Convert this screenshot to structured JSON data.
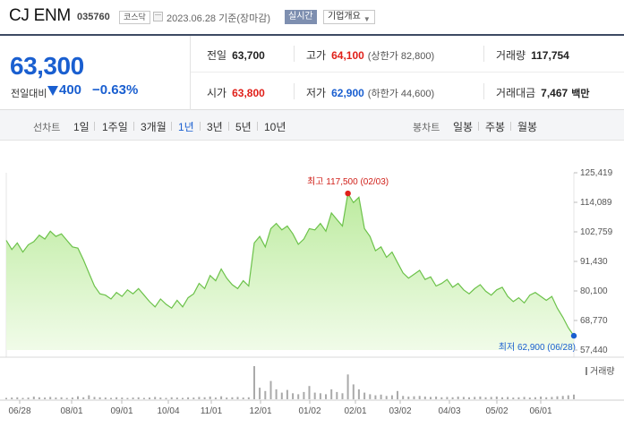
{
  "header": {
    "name": "CJ ENM",
    "code": "035760",
    "market": "코스닥",
    "date": "2023.06.28 기준(장마감)",
    "realtime": "실시간",
    "info_button": "기업개요"
  },
  "summary": {
    "price": "63,300",
    "change_label": "전일대비",
    "change_value": "400",
    "change_rate": "−0.63%",
    "prev_close_label": "전일",
    "prev_close": "63,700",
    "high_label": "고가",
    "high": "64,100",
    "upper_limit": "(상한가 82,800)",
    "volume_label": "거래량",
    "volume": "117,754",
    "open_label": "시가",
    "open": "63,800",
    "low_label": "저가",
    "low": "62,900",
    "lower_limit": "(하한가 44,600)",
    "amount_label": "거래대금",
    "amount": "7,467",
    "amount_unit": "백만"
  },
  "tabs": {
    "line_label": "선차트",
    "line": [
      "1일",
      "1주일",
      "3개월",
      "1년",
      "3년",
      "5년",
      "10년"
    ],
    "active": "1년",
    "candle_label": "봉차트",
    "candle": [
      "일봉",
      "주봉",
      "월봉"
    ]
  },
  "colors": {
    "up": "#e0201a",
    "down": "#1a5fd0",
    "line": "#6cc24a",
    "fill": "#c8efb0"
  },
  "chart_data": {
    "type": "area",
    "title": "",
    "x_ticks": [
      "06/28",
      "08/01",
      "09/01",
      "10/04",
      "11/01",
      "12/01",
      "01/02",
      "02/01",
      "03/02",
      "04/03",
      "05/02",
      "06/01"
    ],
    "y_ticks": [
      "125,419",
      "114,089",
      "102,759",
      "91,430",
      "80,100",
      "68,770",
      "57,440"
    ],
    "ylim": [
      57440,
      125419
    ],
    "high_annotation": "최고 117,500 (02/03)",
    "low_annotation": "최저 62,900 (06/28)",
    "volume_label": "거래량",
    "series": [
      {
        "values": [
          99500,
          96000,
          98500,
          95000,
          97800,
          99000,
          101500,
          100000,
          103000,
          101000,
          102000,
          99500,
          97000,
          96500,
          92000,
          87000,
          82000,
          79000,
          78500,
          77000,
          79500,
          78000,
          80500,
          79000,
          81000,
          78500,
          76000,
          74000,
          77000,
          75000,
          73500,
          76500,
          74000,
          77500,
          79000,
          83000,
          81000,
          86000,
          84000,
          88500,
          85000,
          82500,
          81000,
          84000,
          82000,
          98500,
          101000,
          97000,
          104000,
          106000,
          103500,
          105000,
          102000,
          98000,
          100000,
          104000,
          103500,
          106000,
          103000,
          110000,
          107500,
          105000,
          117500,
          114000,
          116000,
          104000,
          101000,
          95500,
          97000,
          93000,
          95000,
          91000,
          87000,
          85000,
          86500,
          88000,
          84500,
          85500,
          82000,
          83000,
          84500,
          81500,
          83000,
          80500,
          79000,
          81000,
          82500,
          80000,
          78500,
          80500,
          81500,
          78000,
          76000,
          77500,
          75500,
          78500,
          79500,
          78000,
          76500,
          78000,
          73500,
          70000,
          66000,
          62900
        ]
      }
    ],
    "volume": [
      0.04,
      0.05,
      0.06,
      0.04,
      0.05,
      0.08,
      0.06,
      0.05,
      0.07,
      0.05,
      0.06,
      0.04,
      0.05,
      0.09,
      0.06,
      0.12,
      0.07,
      0.06,
      0.05,
      0.04,
      0.06,
      0.05,
      0.04,
      0.05,
      0.06,
      0.04,
      0.05,
      0.07,
      0.05,
      0.04,
      0.06,
      0.05,
      0.04,
      0.06,
      0.05,
      0.07,
      0.06,
      0.08,
      0.05,
      0.09,
      0.05,
      0.06,
      0.07,
      0.05,
      0.06,
      1.0,
      0.35,
      0.25,
      0.55,
      0.3,
      0.2,
      0.28,
      0.18,
      0.15,
      0.22,
      0.4,
      0.2,
      0.18,
      0.15,
      0.3,
      0.22,
      0.18,
      0.75,
      0.45,
      0.3,
      0.2,
      0.15,
      0.12,
      0.14,
      0.1,
      0.12,
      0.25,
      0.1,
      0.08,
      0.09,
      0.1,
      0.08,
      0.07,
      0.08,
      0.06,
      0.07,
      0.06,
      0.08,
      0.07,
      0.06,
      0.07,
      0.08,
      0.06,
      0.07,
      0.08,
      0.06,
      0.07,
      0.05,
      0.06,
      0.07,
      0.05,
      0.06,
      0.08,
      0.06,
      0.07,
      0.09,
      0.1,
      0.12,
      0.14
    ]
  }
}
